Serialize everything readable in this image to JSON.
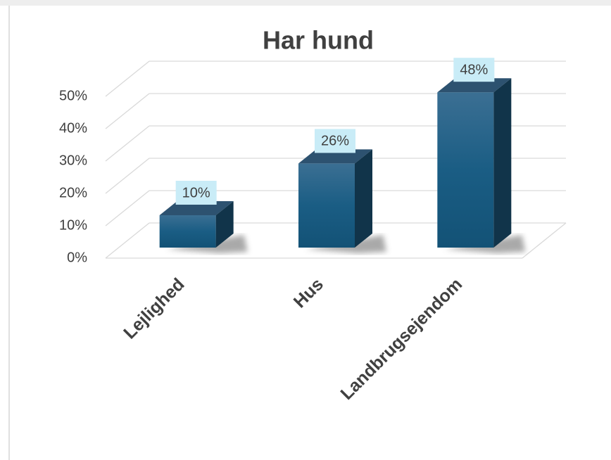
{
  "chart_data": {
    "type": "bar3d",
    "title": "Har hund",
    "categories": [
      "Lejlighed",
      "Hus",
      "Landbrugsejendom"
    ],
    "values": [
      10,
      26,
      48
    ],
    "value_labels": [
      "10%",
      "26%",
      "48%"
    ],
    "color": "#1f5f86",
    "ylim": [
      0,
      50
    ],
    "yticks": [
      {
        "value": 0,
        "label": "0%"
      },
      {
        "value": 10,
        "label": "10%"
      },
      {
        "value": 20,
        "label": "20%"
      },
      {
        "value": 30,
        "label": "30%"
      },
      {
        "value": 40,
        "label": "40%"
      },
      {
        "value": 50,
        "label": "50%"
      }
    ],
    "grid": true
  }
}
